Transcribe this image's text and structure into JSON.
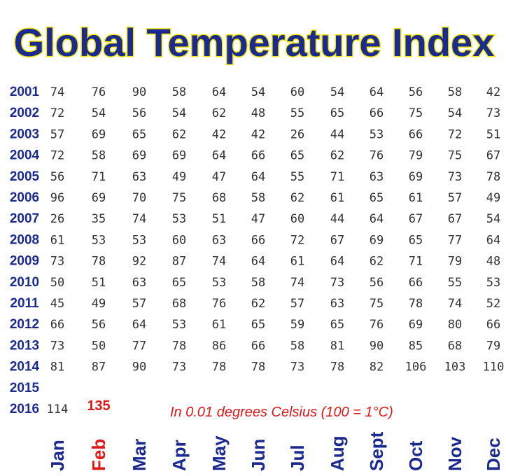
{
  "chart_data": {
    "type": "table",
    "title": "Global Temperature Index",
    "note": "In 0.01 degrees Celsius (100 = 1°C)",
    "months": [
      "Jan",
      "Feb",
      "Mar",
      "Apr",
      "May",
      "Jun",
      "Jul",
      "Aug",
      "Sept",
      "Oct",
      "Nov",
      "Dec"
    ],
    "highlight_month": "Feb",
    "highlight_value": {
      "year": "2016",
      "month": "Feb",
      "value": 135
    },
    "rows": [
      {
        "year": "2001",
        "values": [
          74,
          76,
          90,
          58,
          64,
          54,
          60,
          54,
          64,
          56,
          58,
          42
        ]
      },
      {
        "year": "2002",
        "values": [
          72,
          54,
          56,
          54,
          62,
          48,
          55,
          65,
          66,
          75,
          54,
          73
        ]
      },
      {
        "year": "2003",
        "values": [
          57,
          69,
          65,
          62,
          42,
          42,
          26,
          44,
          53,
          66,
          72,
          51
        ]
      },
      {
        "year": "2004",
        "values": [
          72,
          58,
          69,
          69,
          64,
          66,
          65,
          62,
          76,
          79,
          75,
          67
        ]
      },
      {
        "year": "2005",
        "values": [
          56,
          71,
          63,
          49,
          47,
          64,
          55,
          71,
          63,
          69,
          73,
          78
        ]
      },
      {
        "year": "2006",
        "values": [
          96,
          69,
          70,
          75,
          68,
          58,
          62,
          61,
          65,
          61,
          57,
          49
        ]
      },
      {
        "year": "2007",
        "values": [
          26,
          35,
          74,
          53,
          51,
          47,
          60,
          44,
          64,
          67,
          67,
          54
        ]
      },
      {
        "year": "2008",
        "values": [
          61,
          53,
          53,
          60,
          63,
          66,
          72,
          67,
          69,
          65,
          77,
          64
        ]
      },
      {
        "year": "2009",
        "values": [
          73,
          78,
          92,
          87,
          74,
          64,
          61,
          64,
          62,
          71,
          79,
          48
        ]
      },
      {
        "year": "2010",
        "values": [
          50,
          51,
          63,
          65,
          53,
          58,
          74,
          73,
          56,
          66,
          55,
          53
        ]
      },
      {
        "year": "2011",
        "values": [
          45,
          49,
          57,
          68,
          76,
          62,
          57,
          63,
          75,
          78,
          74,
          52
        ]
      },
      {
        "year": "2012",
        "values": [
          66,
          56,
          64,
          53,
          61,
          65,
          59,
          65,
          76,
          69,
          80,
          66
        ]
      },
      {
        "year": "2013",
        "values": [
          73,
          50,
          77,
          78,
          86,
          66,
          58,
          81,
          90,
          85,
          68,
          79
        ]
      },
      {
        "year": "2014",
        "values": [
          81,
          87,
          90,
          73,
          78,
          78,
          73,
          78,
          82,
          106,
          103,
          110
        ]
      },
      {
        "year": "2015",
        "values": []
      },
      {
        "year": "2016",
        "values": [
          114,
          135
        ]
      }
    ]
  }
}
